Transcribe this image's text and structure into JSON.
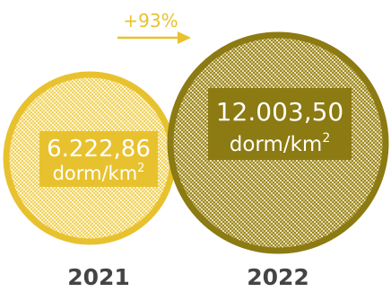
{
  "colors": {
    "accent_2021": "#e8c22e",
    "accent_2022": "#8c7a12",
    "arrow": "#e8c22e",
    "year_text": "#444444",
    "label_text": "#ffffff"
  },
  "chart_data": {
    "type": "bubble",
    "title": "",
    "categories": [
      "2021",
      "2022"
    ],
    "values": [
      6222.86,
      12003.5
    ],
    "value_labels": [
      {
        "number": "6.222,86",
        "unit_prefix": "dorm/km",
        "unit_sup": "2"
      },
      {
        "number": "12.003,50",
        "unit_prefix": "dorm/km",
        "unit_sup": "2"
      }
    ],
    "change_label": "+93%",
    "unit": "dorm/km²"
  }
}
